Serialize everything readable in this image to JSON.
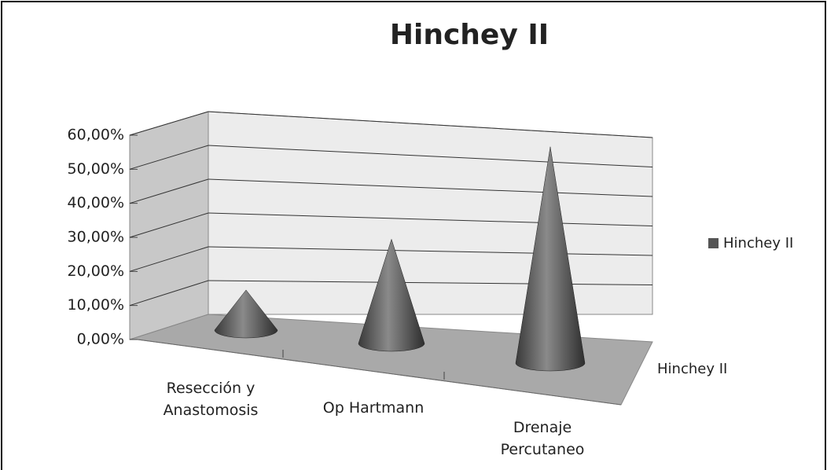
{
  "chart_data": {
    "type": "cone3d",
    "title": "Hinchey II",
    "categories": [
      "Resección y\nAnastomosis",
      "Op Hartmann",
      "Drenaje\nPercutaneo"
    ],
    "series": [
      {
        "name": "Hinchey II",
        "color": "#555555",
        "values": [
          11.76,
          29.41,
          58.82
        ]
      }
    ],
    "depth_label": "Hinchey II",
    "ylim": [
      0,
      60
    ],
    "yticks": [
      {
        "value": 0,
        "label": "0,00%"
      },
      {
        "value": 10,
        "label": "10,00%"
      },
      {
        "value": 20,
        "label": "20,00%"
      },
      {
        "value": 30,
        "label": "30,00%"
      },
      {
        "value": 40,
        "label": "40,00%"
      },
      {
        "value": 50,
        "label": "50,00%"
      },
      {
        "value": 60,
        "label": "60,00%"
      }
    ],
    "grid": true,
    "legend": "right"
  }
}
